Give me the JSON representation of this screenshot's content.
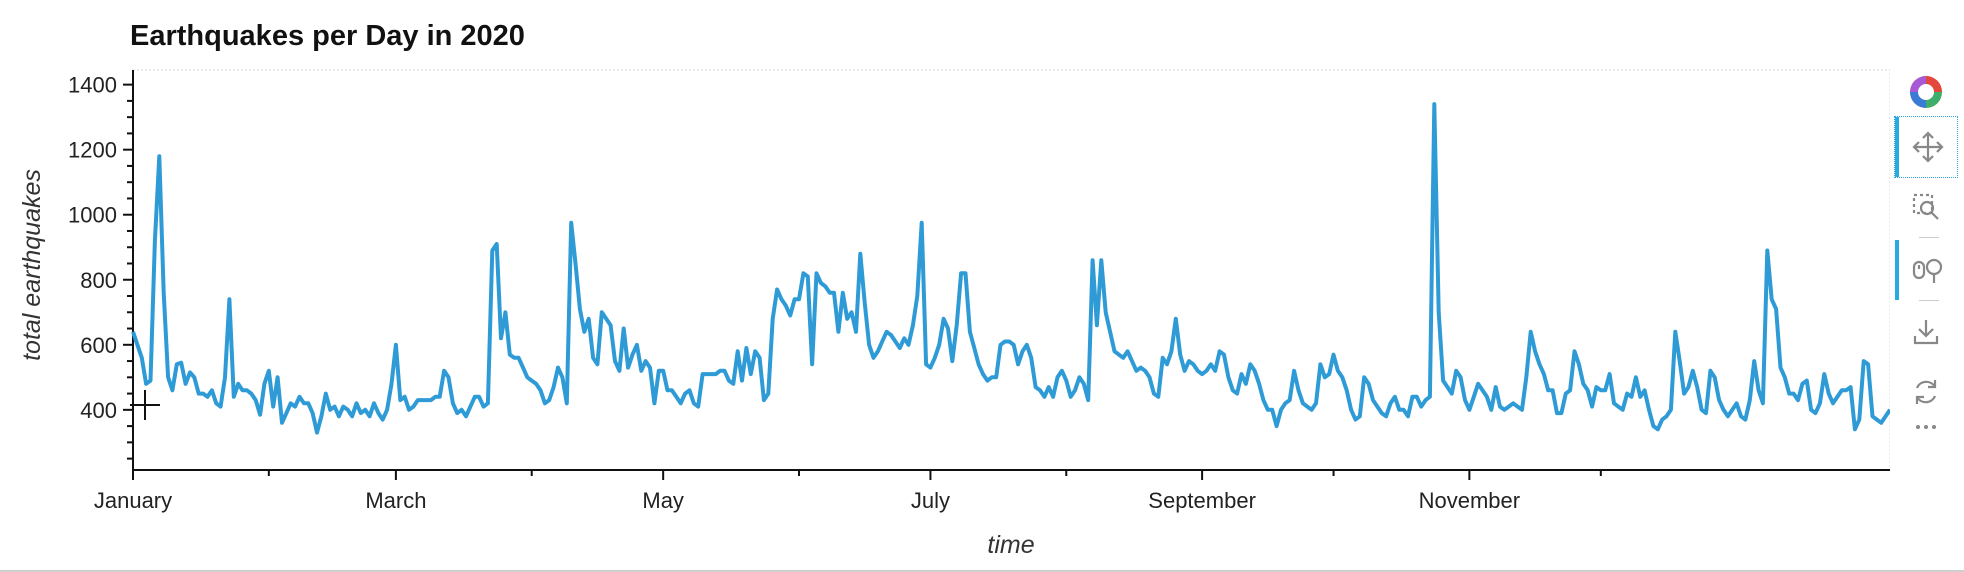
{
  "chart_data": {
    "type": "line",
    "title": "Earthquakes per Day in 2020",
    "xlabel": "time",
    "ylabel": "total earthquakes",
    "x_start": "2020-01-01",
    "x_ticks": [
      "January",
      "March",
      "May",
      "July",
      "September",
      "November"
    ],
    "y_ticks": [
      400,
      600,
      800,
      1000,
      1200,
      1400
    ],
    "ylim": [
      215,
      1445
    ],
    "grid": false,
    "series": [
      {
        "color": "#2f9bd6",
        "values": [
          640,
          600,
          560,
          480,
          490,
          920,
          1180,
          760,
          500,
          460,
          540,
          545,
          480,
          515,
          500,
          450,
          450,
          440,
          460,
          420,
          410,
          500,
          740,
          440,
          480,
          460,
          460,
          450,
          430,
          385,
          480,
          520,
          410,
          500,
          360,
          390,
          420,
          410,
          440,
          420,
          420,
          390,
          330,
          380,
          450,
          400,
          410,
          380,
          410,
          400,
          380,
          420,
          390,
          400,
          380,
          420,
          390,
          370,
          400,
          480,
          600,
          430,
          440,
          400,
          410,
          430,
          430,
          430,
          430,
          440,
          440,
          520,
          500,
          420,
          390,
          400,
          380,
          410,
          440,
          440,
          410,
          420,
          890,
          910,
          620,
          700,
          570,
          560,
          560,
          530,
          500,
          490,
          480,
          460,
          420,
          430,
          470,
          530,
          500,
          420,
          975,
          850,
          710,
          640,
          680,
          560,
          540,
          700,
          680,
          660,
          550,
          520,
          650,
          530,
          570,
          600,
          520,
          550,
          530,
          420,
          520,
          520,
          460,
          460,
          440,
          420,
          450,
          460,
          420,
          410,
          510,
          510,
          510,
          510,
          520,
          520,
          490,
          480,
          580,
          490,
          590,
          510,
          580,
          560,
          430,
          450,
          680,
          770,
          740,
          720,
          690,
          740,
          740,
          820,
          810,
          540,
          820,
          790,
          780,
          760,
          760,
          640,
          760,
          680,
          700,
          640,
          880,
          730,
          600,
          560,
          580,
          610,
          640,
          630,
          610,
          590,
          620,
          600,
          660,
          750,
          975,
          540,
          530,
          560,
          600,
          680,
          650,
          550,
          660,
          820,
          820,
          640,
          590,
          540,
          510,
          490,
          500,
          500,
          600,
          610,
          610,
          600,
          540,
          580,
          600,
          560,
          470,
          460,
          440,
          470,
          440,
          500,
          520,
          490,
          440,
          460,
          500,
          480,
          430,
          860,
          660,
          860,
          700,
          640,
          580,
          570,
          560,
          580,
          550,
          520,
          530,
          520,
          500,
          450,
          440,
          560,
          540,
          580,
          680,
          570,
          520,
          550,
          540,
          520,
          510,
          520,
          540,
          520,
          580,
          570,
          500,
          460,
          450,
          510,
          480,
          540,
          520,
          480,
          430,
          400,
          400,
          350,
          400,
          420,
          430,
          520,
          460,
          420,
          410,
          400,
          420,
          540,
          500,
          510,
          570,
          520,
          500,
          460,
          400,
          370,
          380,
          500,
          480,
          430,
          410,
          390,
          380,
          420,
          440,
          400,
          400,
          380,
          440,
          440,
          410,
          430,
          440,
          1340,
          700,
          490,
          470,
          450,
          520,
          500,
          430,
          400,
          440,
          480,
          460,
          440,
          400,
          470,
          410,
          400,
          410,
          420,
          410,
          400,
          500,
          640,
          580,
          540,
          510,
          460,
          460,
          390,
          390,
          450,
          460,
          580,
          540,
          480,
          460,
          410,
          470,
          460,
          460,
          510,
          420,
          410,
          400,
          450,
          440,
          500,
          440,
          460,
          400,
          350,
          340,
          370,
          380,
          400,
          640,
          550,
          450,
          470,
          520,
          470,
          400,
          390,
          520,
          500,
          430,
          400,
          380,
          400,
          420,
          380,
          370,
          430,
          550,
          460,
          420,
          890,
          740,
          710,
          530,
          500,
          450,
          450,
          430,
          480,
          490,
          400,
          390,
          420,
          510,
          450,
          420,
          440,
          460,
          460,
          470,
          340,
          370,
          550,
          540,
          380,
          370,
          360,
          380,
          400
        ]
      }
    ]
  },
  "toolbar": {
    "logo": "bokeh-logo-icon",
    "tools": [
      "pan-icon",
      "box-zoom-icon",
      "wheel-zoom-icon",
      "save-icon",
      "reset-icon",
      "more-icon"
    ]
  }
}
